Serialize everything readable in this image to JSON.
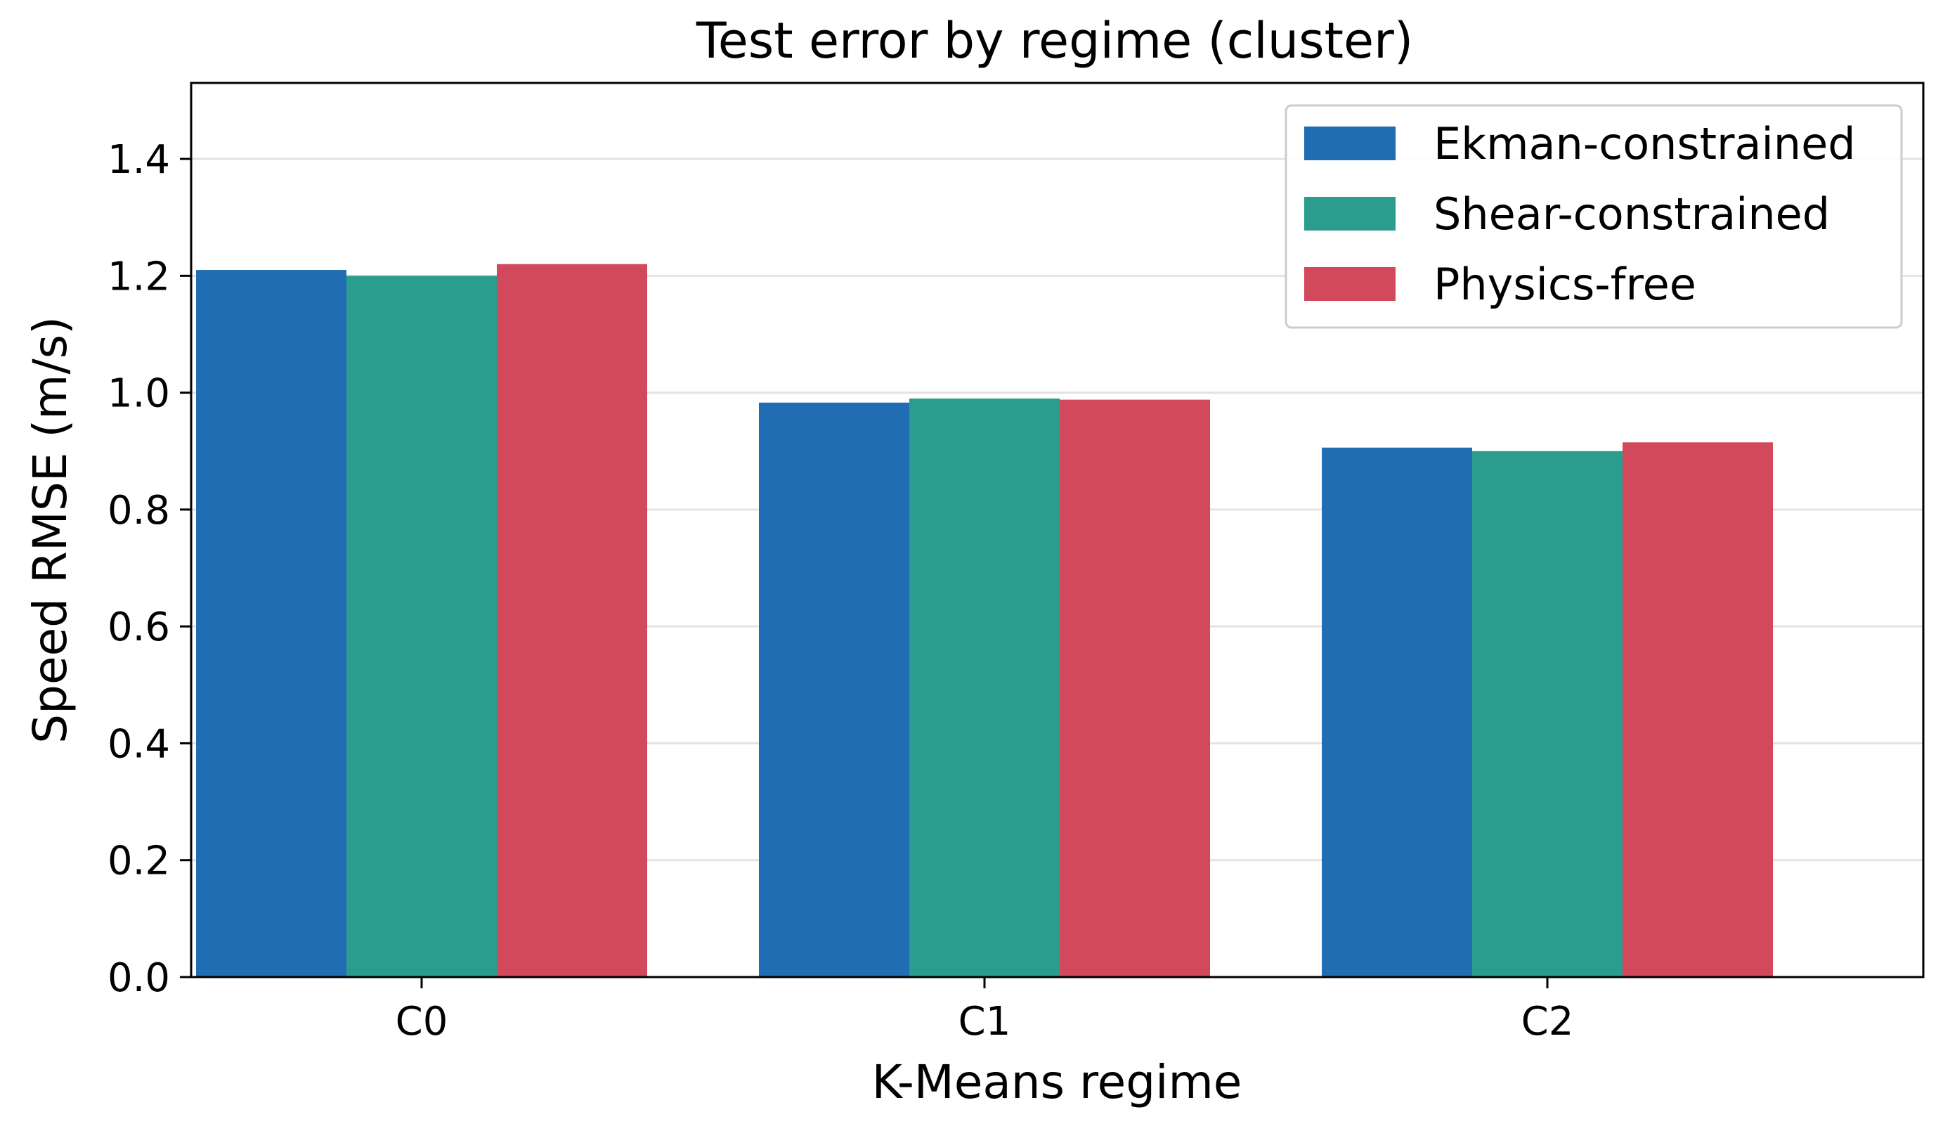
{
  "chart_data": {
    "type": "bar",
    "title": "Test error by regime (cluster)",
    "xlabel": "K-Means regime",
    "ylabel": "Speed RMSE (m/s)",
    "categories": [
      "C0",
      "C1",
      "C2"
    ],
    "series": [
      {
        "name": "Ekman-constrained",
        "color": "#216db3",
        "values": [
          1.21,
          0.983,
          0.906
        ]
      },
      {
        "name": "Shear-constrained",
        "color": "#2a9d8e",
        "values": [
          1.2,
          0.99,
          0.9
        ]
      },
      {
        "name": "Physics-free",
        "color": "#d3495c",
        "values": [
          1.22,
          0.988,
          0.915
        ]
      }
    ],
    "ylim": [
      0,
      1.53
    ],
    "yticks": [
      0.0,
      0.2,
      0.4,
      0.6,
      0.8,
      1.0,
      1.2,
      1.4
    ],
    "ytick_labels": [
      "0.0",
      "0.2",
      "0.4",
      "0.6",
      "0.8",
      "1.0",
      "1.2",
      "1.4"
    ],
    "grid": true,
    "legend_position": "top-right"
  }
}
